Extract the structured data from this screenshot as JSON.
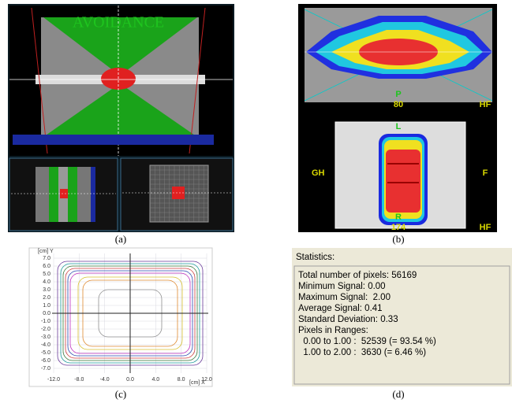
{
  "panel_a": {
    "title": "AVOIDANCE",
    "caption": "(a)"
  },
  "panel_b": {
    "top_label": "P",
    "top_value": "80",
    "top_right": "HF",
    "bottom_top": "L",
    "bottom_left": "GH",
    "bottom_right": "F",
    "bottom_bottom": "R",
    "bottom_value": "174",
    "bottom_corner": "HF",
    "caption": "(b)"
  },
  "panel_c": {
    "y_axis_label": "[cm] Y",
    "x_axis_label": "[cm] X",
    "yticks": [
      "7.0",
      "6.0",
      "5.0",
      "4.0",
      "3.0",
      "2.0",
      "1.0",
      "0.0",
      "-1.0",
      "-2.0",
      "-3.0",
      "-4.0",
      "-5.0",
      "-6.0",
      "-7.0"
    ],
    "xticks": [
      "-12.0",
      "-8.0",
      "-4.0",
      "0.0",
      "4.0",
      "8.0",
      "12.0"
    ],
    "caption": "(c)"
  },
  "panel_d": {
    "heading": "Statistics:",
    "lines": [
      "Total number of pixels: 56169",
      "Minimum Signal: 0.00",
      "Maximum Signal:  2.00",
      "Average Signal: 0.41",
      "Standard Deviation: 0.33",
      "Pixels in Ranges:",
      "  0.00 to 1.00 :  52539 (= 93.54 %)",
      "  1.00 to 2.00 :  3630 (= 6.46 %)"
    ],
    "caption": "(d)"
  }
}
